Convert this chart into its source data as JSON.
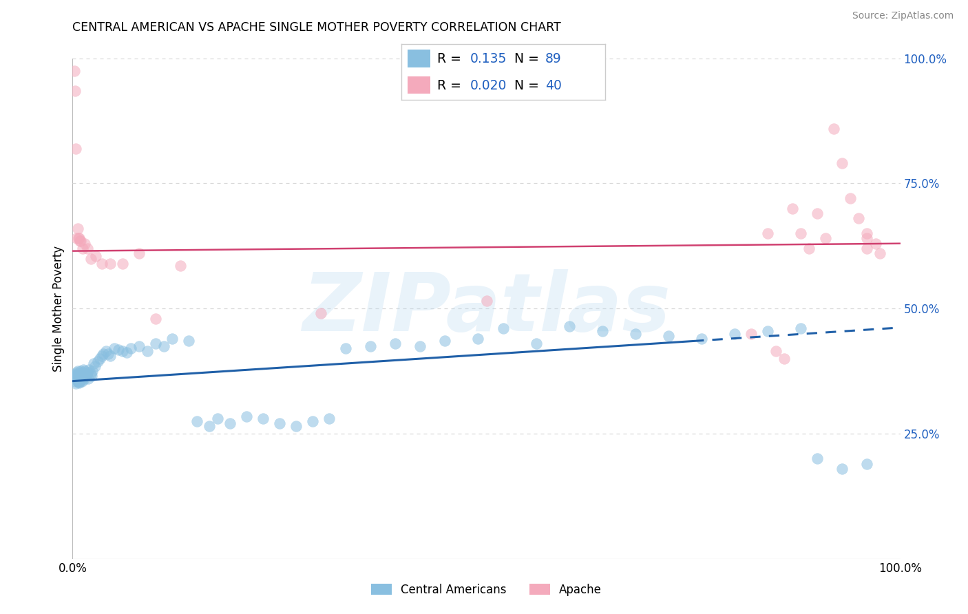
{
  "title": "CENTRAL AMERICAN VS APACHE SINGLE MOTHER POVERTY CORRELATION CHART",
  "source": "Source: ZipAtlas.com",
  "ylabel": "Single Mother Poverty",
  "xlim": [
    0,
    1
  ],
  "ylim": [
    0,
    1
  ],
  "xticks": [
    0.0,
    1.0
  ],
  "xtick_labels": [
    "0.0%",
    "100.0%"
  ],
  "ytick_positions_right": [
    0.25,
    0.5,
    0.75,
    1.0
  ],
  "ytick_labels_right": [
    "25.0%",
    "50.0%",
    "75.0%",
    "100.0%"
  ],
  "watermark": "ZIPatlas",
  "legend_blue_r": "0.135",
  "legend_blue_n": "89",
  "legend_pink_r": "0.020",
  "legend_pink_n": "40",
  "legend_label_blue": "Central Americans",
  "legend_label_pink": "Apache",
  "blue_color": "#89bfe0",
  "pink_color": "#f4aabc",
  "trendline_blue_color": "#2060a8",
  "trendline_pink_color": "#d04070",
  "r_n_color": "#2060c0",
  "grid_color": "#d8d8d8",
  "bg_color": "#ffffff",
  "blue_trend_x0": 0.0,
  "blue_trend_y0": 0.355,
  "blue_trend_x1": 0.75,
  "blue_trend_y1": 0.435,
  "blue_trend_x2": 1.0,
  "blue_trend_y2": 0.462,
  "pink_trend_x0": 0.0,
  "pink_trend_y0": 0.615,
  "pink_trend_x1": 1.0,
  "pink_trend_y1": 0.63,
  "blue_x": [
    0.002,
    0.003,
    0.004,
    0.004,
    0.004,
    0.005,
    0.005,
    0.005,
    0.005,
    0.006,
    0.006,
    0.006,
    0.007,
    0.007,
    0.007,
    0.008,
    0.008,
    0.008,
    0.009,
    0.009,
    0.01,
    0.01,
    0.01,
    0.011,
    0.011,
    0.012,
    0.012,
    0.013,
    0.013,
    0.014,
    0.014,
    0.015,
    0.016,
    0.017,
    0.018,
    0.019,
    0.02,
    0.022,
    0.023,
    0.024,
    0.025,
    0.027,
    0.03,
    0.033,
    0.035,
    0.037,
    0.04,
    0.043,
    0.045,
    0.05,
    0.055,
    0.06,
    0.065,
    0.07,
    0.08,
    0.09,
    0.1,
    0.11,
    0.12,
    0.14,
    0.15,
    0.165,
    0.175,
    0.19,
    0.21,
    0.23,
    0.25,
    0.27,
    0.29,
    0.31,
    0.33,
    0.36,
    0.39,
    0.42,
    0.45,
    0.49,
    0.52,
    0.56,
    0.6,
    0.64,
    0.68,
    0.72,
    0.76,
    0.8,
    0.84,
    0.88,
    0.9,
    0.93,
    0.96
  ],
  "blue_y": [
    0.36,
    0.355,
    0.35,
    0.365,
    0.37,
    0.358,
    0.362,
    0.368,
    0.372,
    0.355,
    0.36,
    0.375,
    0.353,
    0.365,
    0.37,
    0.352,
    0.358,
    0.363,
    0.355,
    0.368,
    0.36,
    0.37,
    0.375,
    0.355,
    0.368,
    0.36,
    0.372,
    0.365,
    0.378,
    0.358,
    0.37,
    0.375,
    0.365,
    0.368,
    0.372,
    0.36,
    0.378,
    0.37,
    0.365,
    0.375,
    0.39,
    0.385,
    0.395,
    0.4,
    0.405,
    0.41,
    0.415,
    0.41,
    0.405,
    0.42,
    0.418,
    0.415,
    0.412,
    0.42,
    0.425,
    0.415,
    0.43,
    0.425,
    0.44,
    0.435,
    0.275,
    0.265,
    0.28,
    0.27,
    0.285,
    0.28,
    0.27,
    0.265,
    0.275,
    0.28,
    0.42,
    0.425,
    0.43,
    0.425,
    0.435,
    0.44,
    0.46,
    0.43,
    0.465,
    0.455,
    0.45,
    0.445,
    0.44,
    0.45,
    0.455,
    0.46,
    0.2,
    0.18,
    0.19
  ],
  "pink_x": [
    0.002,
    0.003,
    0.004,
    0.005,
    0.006,
    0.007,
    0.008,
    0.009,
    0.01,
    0.012,
    0.015,
    0.018,
    0.022,
    0.028,
    0.035,
    0.045,
    0.06,
    0.08,
    0.1,
    0.13,
    0.3,
    0.5,
    0.82,
    0.84,
    0.85,
    0.86,
    0.87,
    0.88,
    0.89,
    0.9,
    0.91,
    0.92,
    0.93,
    0.94,
    0.95,
    0.96,
    0.96,
    0.96,
    0.97,
    0.975
  ],
  "pink_y": [
    0.975,
    0.935,
    0.82,
    0.64,
    0.66,
    0.64,
    0.64,
    0.635,
    0.635,
    0.62,
    0.63,
    0.62,
    0.6,
    0.605,
    0.59,
    0.59,
    0.59,
    0.61,
    0.48,
    0.585,
    0.49,
    0.515,
    0.45,
    0.65,
    0.415,
    0.4,
    0.7,
    0.65,
    0.62,
    0.69,
    0.64,
    0.86,
    0.79,
    0.72,
    0.68,
    0.62,
    0.64,
    0.65,
    0.63,
    0.61
  ]
}
